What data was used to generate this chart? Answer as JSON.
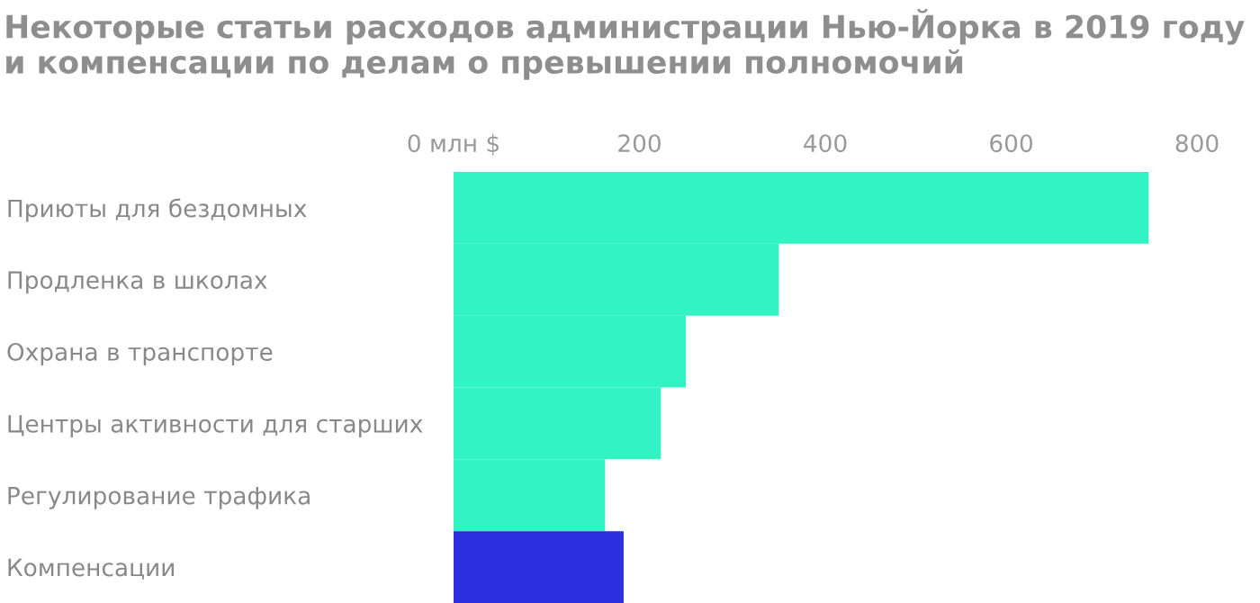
{
  "chart_data": {
    "type": "bar",
    "orientation": "horizontal",
    "title": "Некоторые статьи расходов администрации Нью-Йорка в 2019 году и компенсации по делам о превышении полномочий",
    "categories": [
      "Приюты для бездомных",
      "Продленка в школах",
      "Охрана в транспорте",
      "Центры активности для старших",
      "Регулирование трафика",
      "Компенсации"
    ],
    "values": [
      748,
      350,
      250,
      223,
      163,
      183
    ],
    "colors": [
      "#32f3c4",
      "#32f3c4",
      "#32f3c4",
      "#32f3c4",
      "#32f3c4",
      "#2d2ee0"
    ],
    "xlim": [
      0,
      800
    ],
    "xticks": [
      {
        "value": 0,
        "label": "0 млн $"
      },
      200,
      400,
      600,
      800
    ],
    "grid": false
  }
}
